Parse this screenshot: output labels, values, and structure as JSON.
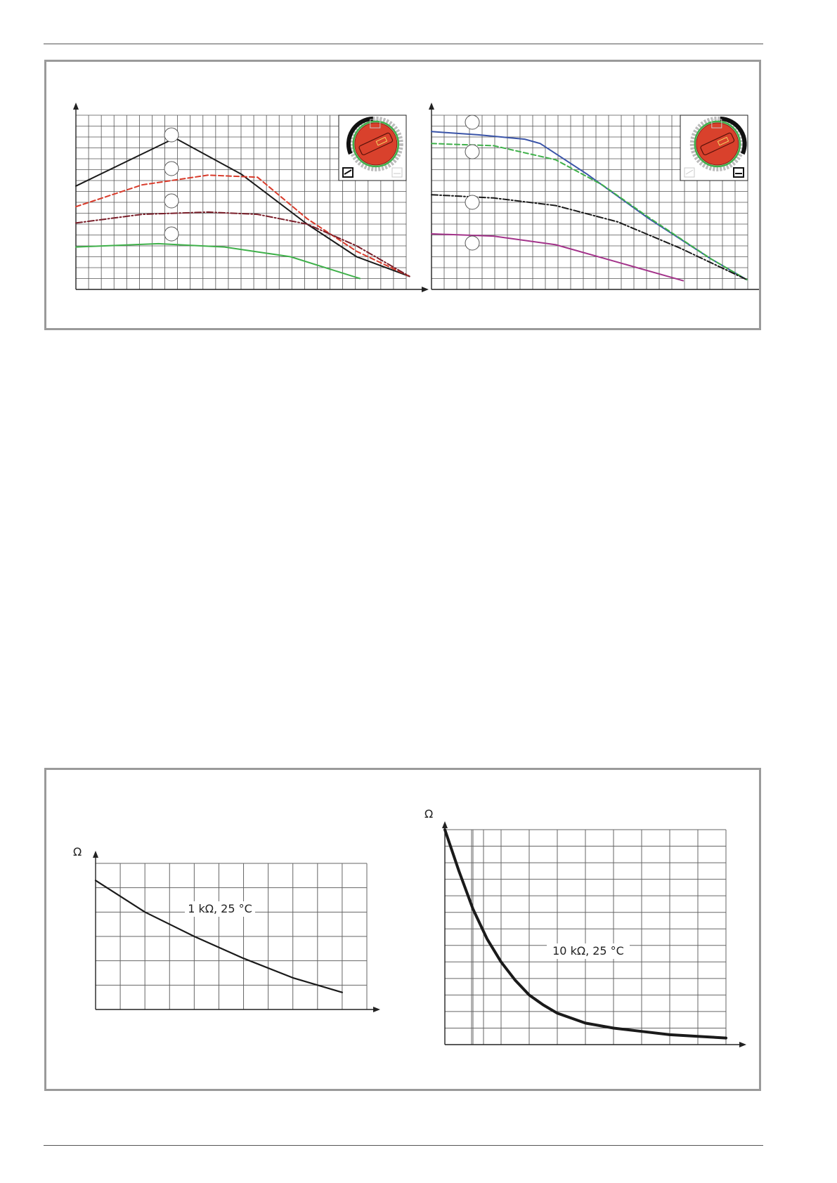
{
  "colors": {
    "black": "#1a1a1a",
    "red": "#d83a2a",
    "darkred": "#7a1f2a",
    "green": "#3fb04a",
    "blue": "#3a54a8",
    "purple": "#a3338a",
    "teal": "#3a9a8a",
    "dial": "#d9412c"
  },
  "charts": {
    "pump_proportional": {
      "dial_icon": "proportional-pressure-icon",
      "chart_data": {
        "type": "line",
        "title": "",
        "xlabel": "",
        "ylabel": "",
        "xlim": [
          0,
          20
        ],
        "ylim": [
          0,
          16
        ],
        "grid": true,
        "series": [
          {
            "style": "solid",
            "color": "#1a1a1a",
            "x": [
              0,
              6,
              10,
              14,
              17,
              20.2
            ],
            "y": [
              9.5,
              13.9,
              10.6,
              6.0,
              3.0,
              1.2
            ]
          },
          {
            "style": "dashed",
            "color": "#d83a2a",
            "x": [
              0,
              4,
              8,
              11,
              14,
              17,
              20.2
            ],
            "y": [
              7.6,
              9.6,
              10.5,
              10.3,
              6.5,
              3.5,
              1.2
            ]
          },
          {
            "style": "dashdot",
            "color": "#7a1f2a",
            "x": [
              0,
              4,
              8,
              11,
              14,
              17,
              20.2
            ],
            "y": [
              6.1,
              6.9,
              7.1,
              6.9,
              6.0,
              4.0,
              1.2
            ]
          },
          {
            "style": "solid",
            "color": "#3fb04a",
            "x": [
              0,
              5,
              9,
              13,
              17.2
            ],
            "y": [
              3.9,
              4.2,
              3.9,
              3.0,
              1.0
            ]
          }
        ]
      }
    },
    "pump_constant": {
      "dial_icon": "constant-pressure-icon",
      "chart_data": {
        "type": "line",
        "title": "",
        "xlabel": "",
        "ylabel": "",
        "xlim": [
          0,
          20
        ],
        "ylim": [
          0,
          16
        ],
        "grid": true,
        "series": [
          {
            "style": "solid",
            "color": "#3a54a8",
            "x": [
              0,
              3,
              6,
              7,
              10,
              14,
              18,
              20.3
            ],
            "y": [
              14.5,
              14.2,
              13.8,
              13.4,
              10.6,
              6.5,
              2.8,
              0.9
            ]
          },
          {
            "style": "dashed",
            "color": "#3fb04a",
            "x": [
              0,
              4,
              8,
              11,
              14,
              18,
              20.3
            ],
            "y": [
              13.4,
              13.2,
              11.9,
              9.6,
              6.6,
              2.8,
              0.9
            ]
          },
          {
            "style": "dashdot",
            "color": "#1a1a1a",
            "x": [
              0,
              4,
              8,
              12,
              16,
              20.3
            ],
            "y": [
              8.7,
              8.4,
              7.7,
              6.2,
              3.8,
              0.9
            ]
          },
          {
            "style": "solid",
            "color": "#a3338a",
            "x": [
              0,
              4,
              8,
              12,
              16.2
            ],
            "y": [
              5.1,
              4.9,
              4.1,
              2.5,
              0.8
            ]
          }
        ]
      }
    },
    "sensor_1k": {
      "y_unit": "Ω",
      "annotation": "1 kΩ, 25 °C",
      "chart_data": {
        "type": "line",
        "title": "",
        "xlabel": "",
        "ylabel": "Ω",
        "xlim": [
          0,
          11
        ],
        "ylim": [
          0,
          6
        ],
        "grid": true,
        "series": [
          {
            "style": "solid",
            "color": "#1a1a1a",
            "x": [
              0,
              2,
              4,
              6,
              8,
              10
            ],
            "y": [
              5.3,
              4.0,
              3.0,
              2.1,
              1.3,
              0.7
            ]
          }
        ]
      }
    },
    "sensor_10k": {
      "y_unit": "Ω",
      "annotation": "10 kΩ, 25 °C",
      "chart_data": {
        "type": "line",
        "title": "",
        "xlabel": "",
        "ylabel": "Ω",
        "xlim": [
          0,
          10
        ],
        "ylim": [
          0,
          13
        ],
        "grid": true,
        "series": [
          {
            "style": "solid",
            "color": "#1a1a1a",
            "x": [
              0,
              0.5,
              1,
              1.5,
              2,
              2.5,
              3,
              3.5,
              4,
              5,
              6,
              7,
              8,
              9,
              10
            ],
            "y": [
              13.0,
              10.5,
              8.2,
              6.4,
              5.0,
              3.9,
              3.0,
              2.4,
              1.9,
              1.3,
              1.0,
              0.8,
              0.6,
              0.5,
              0.4
            ]
          }
        ]
      }
    }
  }
}
